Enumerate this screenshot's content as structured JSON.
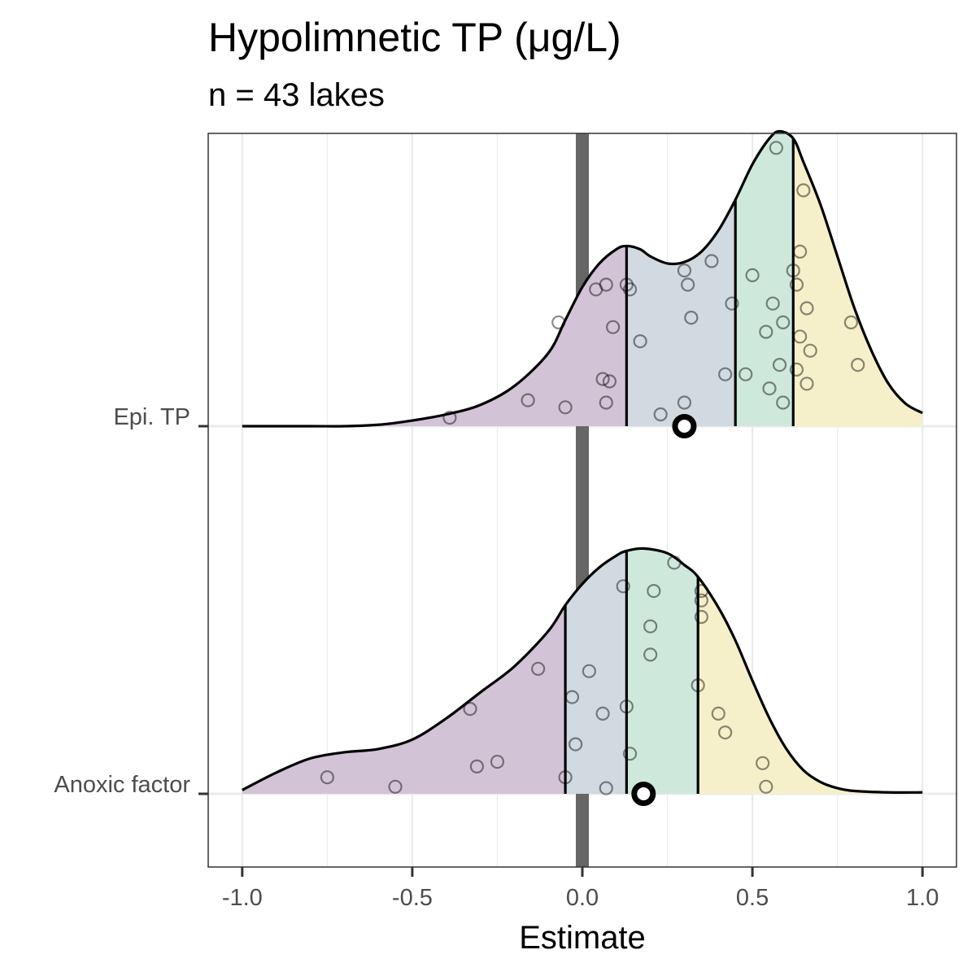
{
  "chart_data": {
    "type": "ridgeline-density",
    "title": "Hypolimnetic TP (μg/L)",
    "subtitle": "n = 43 lakes",
    "xlabel": "Estimate",
    "ylabel": "",
    "xlim": [
      -1.1,
      1.1
    ],
    "xticks": [
      -1.0,
      -0.5,
      0.0,
      0.5,
      1.0
    ],
    "xtick_labels": [
      "-1.0",
      "-0.5",
      "0.0",
      "0.5",
      "1.0"
    ],
    "grid": true,
    "reference_line": 0.0,
    "quantile_fill_colors": [
      "#d3c3d6",
      "#d0dae0",
      "#cfe8dc",
      "#f6f0ca"
    ],
    "series": [
      {
        "name": "Epi. TP",
        "point_estimate": 0.3,
        "quantile_breaks": [
          0.13,
          0.45,
          0.62
        ],
        "density": [
          [
            -1.0,
            0.0
          ],
          [
            -0.8,
            0.0
          ],
          [
            -0.7,
            0.0
          ],
          [
            -0.6,
            0.003
          ],
          [
            -0.5,
            0.012
          ],
          [
            -0.4,
            0.025
          ],
          [
            -0.3,
            0.045
          ],
          [
            -0.2,
            0.085
          ],
          [
            -0.1,
            0.155
          ],
          [
            -0.05,
            0.225
          ],
          [
            0.0,
            0.295
          ],
          [
            0.05,
            0.345
          ],
          [
            0.1,
            0.375
          ],
          [
            0.13,
            0.382
          ],
          [
            0.17,
            0.375
          ],
          [
            0.2,
            0.36
          ],
          [
            0.25,
            0.345
          ],
          [
            0.3,
            0.348
          ],
          [
            0.35,
            0.37
          ],
          [
            0.4,
            0.415
          ],
          [
            0.45,
            0.48
          ],
          [
            0.5,
            0.555
          ],
          [
            0.55,
            0.61
          ],
          [
            0.58,
            0.625
          ],
          [
            0.62,
            0.61
          ],
          [
            0.65,
            0.56
          ],
          [
            0.7,
            0.47
          ],
          [
            0.75,
            0.36
          ],
          [
            0.8,
            0.25
          ],
          [
            0.85,
            0.16
          ],
          [
            0.9,
            0.09
          ],
          [
            0.95,
            0.048
          ],
          [
            1.0,
            0.028
          ]
        ],
        "points": [
          [
            0.57,
            0.59
          ],
          [
            0.65,
            0.5
          ],
          [
            0.3,
            0.33
          ],
          [
            0.38,
            0.35
          ],
          [
            0.5,
            0.32
          ],
          [
            0.64,
            0.37
          ],
          [
            0.62,
            0.33
          ],
          [
            0.63,
            0.3
          ],
          [
            0.13,
            0.3
          ],
          [
            0.14,
            0.29
          ],
          [
            0.31,
            0.3
          ],
          [
            0.07,
            0.3
          ],
          [
            0.04,
            0.29
          ],
          [
            0.44,
            0.26
          ],
          [
            0.56,
            0.26
          ],
          [
            0.66,
            0.25
          ],
          [
            0.32,
            0.23
          ],
          [
            0.59,
            0.22
          ],
          [
            -0.07,
            0.22
          ],
          [
            0.09,
            0.21
          ],
          [
            0.54,
            0.2
          ],
          [
            0.64,
            0.19
          ],
          [
            0.79,
            0.22
          ],
          [
            0.17,
            0.18
          ],
          [
            0.67,
            0.16
          ],
          [
            0.81,
            0.13
          ],
          [
            0.58,
            0.13
          ],
          [
            0.63,
            0.12
          ],
          [
            0.42,
            0.11
          ],
          [
            0.48,
            0.11
          ],
          [
            0.06,
            0.1
          ],
          [
            0.08,
            0.095
          ],
          [
            0.55,
            0.08
          ],
          [
            0.66,
            0.09
          ],
          [
            -0.16,
            0.055
          ],
          [
            0.07,
            0.05
          ],
          [
            0.3,
            0.05
          ],
          [
            0.59,
            0.05
          ],
          [
            -0.05,
            0.04
          ],
          [
            0.23,
            0.025
          ],
          [
            -0.39,
            0.018
          ]
        ]
      },
      {
        "name": "Anoxic factor",
        "point_estimate": 0.18,
        "quantile_breaks": [
          -0.05,
          0.13,
          0.34
        ],
        "density": [
          [
            -1.0,
            0.008
          ],
          [
            -0.9,
            0.045
          ],
          [
            -0.8,
            0.075
          ],
          [
            -0.7,
            0.088
          ],
          [
            -0.6,
            0.095
          ],
          [
            -0.5,
            0.115
          ],
          [
            -0.4,
            0.16
          ],
          [
            -0.3,
            0.215
          ],
          [
            -0.2,
            0.27
          ],
          [
            -0.1,
            0.345
          ],
          [
            -0.05,
            0.4
          ],
          [
            0.0,
            0.445
          ],
          [
            0.05,
            0.48
          ],
          [
            0.1,
            0.505
          ],
          [
            0.13,
            0.515
          ],
          [
            0.18,
            0.52
          ],
          [
            0.25,
            0.51
          ],
          [
            0.3,
            0.485
          ],
          [
            0.34,
            0.46
          ],
          [
            0.4,
            0.395
          ],
          [
            0.45,
            0.325
          ],
          [
            0.5,
            0.24
          ],
          [
            0.55,
            0.16
          ],
          [
            0.6,
            0.095
          ],
          [
            0.65,
            0.05
          ],
          [
            0.7,
            0.025
          ],
          [
            0.75,
            0.012
          ],
          [
            0.8,
            0.006
          ],
          [
            0.9,
            0.003
          ],
          [
            1.0,
            0.003
          ]
        ],
        "points": [
          [
            0.27,
            0.49
          ],
          [
            0.12,
            0.44
          ],
          [
            0.21,
            0.43
          ],
          [
            0.35,
            0.43
          ],
          [
            0.35,
            0.41
          ],
          [
            0.35,
            0.375
          ],
          [
            0.2,
            0.355
          ],
          [
            0.2,
            0.295
          ],
          [
            -0.13,
            0.265
          ],
          [
            0.02,
            0.26
          ],
          [
            0.34,
            0.23
          ],
          [
            -0.03,
            0.205
          ],
          [
            0.13,
            0.185
          ],
          [
            -0.33,
            0.18
          ],
          [
            0.06,
            0.17
          ],
          [
            0.4,
            0.17
          ],
          [
            0.42,
            0.13
          ],
          [
            -0.02,
            0.105
          ],
          [
            0.14,
            0.085
          ],
          [
            0.53,
            0.065
          ],
          [
            -0.31,
            0.058
          ],
          [
            -0.25,
            0.068
          ],
          [
            -0.75,
            0.035
          ],
          [
            -0.05,
            0.035
          ],
          [
            -0.55,
            0.015
          ],
          [
            0.07,
            0.012
          ],
          [
            0.54,
            0.015
          ]
        ]
      }
    ]
  }
}
